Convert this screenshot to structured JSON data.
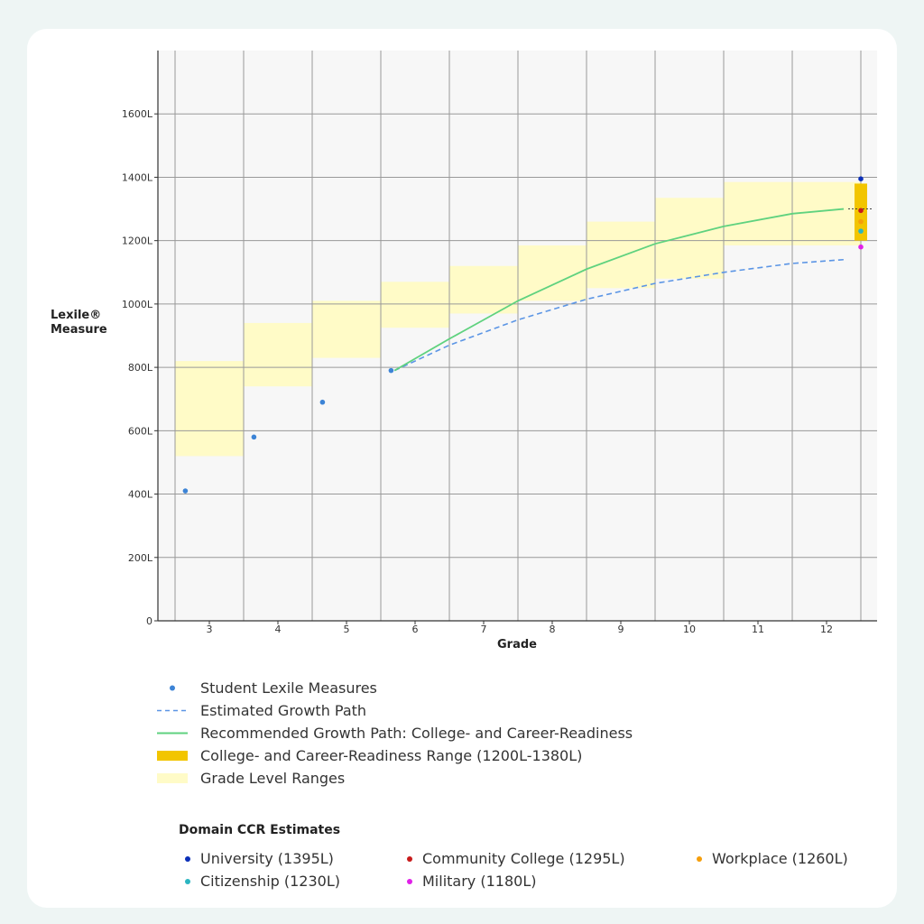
{
  "chart_data": {
    "type": "line",
    "xlabel": "Grade",
    "ylabel": "Lexile® Measure",
    "ylim": [
      0,
      1800
    ],
    "x_categories": [
      "3",
      "4",
      "5",
      "6",
      "7",
      "8",
      "9",
      "10",
      "11",
      "12"
    ],
    "y_ticks": [
      "0",
      "200L",
      "400L",
      "600L",
      "800L",
      "1000L",
      "1200L",
      "1400L",
      "1600L"
    ],
    "grid": true,
    "grade_level_ranges": [
      {
        "grade": "3",
        "low": 520,
        "high": 820
      },
      {
        "grade": "4",
        "low": 740,
        "high": 940
      },
      {
        "grade": "5",
        "low": 830,
        "high": 1010
      },
      {
        "grade": "6",
        "low": 925,
        "high": 1070
      },
      {
        "grade": "7",
        "low": 970,
        "high": 1120
      },
      {
        "grade": "8",
        "low": 1010,
        "high": 1185
      },
      {
        "grade": "9",
        "low": 1050,
        "high": 1260
      },
      {
        "grade": "10",
        "low": 1080,
        "high": 1335
      },
      {
        "grade": "11",
        "low": 1185,
        "high": 1385
      },
      {
        "grade": "12",
        "low": 1185,
        "high": 1385
      }
    ],
    "student_measures": [
      {
        "grade": 2.65,
        "value": 410
      },
      {
        "grade": 3.65,
        "value": 580
      },
      {
        "grade": 4.65,
        "value": 690
      },
      {
        "grade": 5.65,
        "value": 790
      }
    ],
    "estimated_growth_path": [
      {
        "grade": 5.7,
        "value": 790
      },
      {
        "grade": 6.5,
        "value": 870
      },
      {
        "grade": 7.5,
        "value": 950
      },
      {
        "grade": 8.5,
        "value": 1015
      },
      {
        "grade": 9.5,
        "value": 1065
      },
      {
        "grade": 10.5,
        "value": 1100
      },
      {
        "grade": 11.5,
        "value": 1128
      },
      {
        "grade": 12.25,
        "value": 1140
      }
    ],
    "recommended_growth_path": [
      {
        "grade": 5.7,
        "value": 790
      },
      {
        "grade": 6.5,
        "value": 890
      },
      {
        "grade": 7.5,
        "value": 1010
      },
      {
        "grade": 8.5,
        "value": 1110
      },
      {
        "grade": 9.5,
        "value": 1190
      },
      {
        "grade": 10.5,
        "value": 1245
      },
      {
        "grade": 11.5,
        "value": 1285
      },
      {
        "grade": 12.25,
        "value": 1300
      }
    ],
    "ccr_range": {
      "x": 12.5,
      "low": 1200,
      "high": 1380,
      "target": 1300
    },
    "domain_estimates": [
      {
        "name": "University",
        "value": 1395,
        "color": "#0b2fb8"
      },
      {
        "name": "Community College",
        "value": 1295,
        "color": "#c81b1b"
      },
      {
        "name": "Workplace",
        "value": 1260,
        "color": "#f59e0b"
      },
      {
        "name": "Citizenship",
        "value": 1230,
        "color": "#2bb5c1"
      },
      {
        "name": "Military",
        "value": 1180,
        "color": "#e020e8"
      }
    ],
    "colors": {
      "student": "#3d84d6",
      "estimated": "#5b95e5",
      "recommended": "#5fd27f",
      "ccr": "#f2c500",
      "grade_range": "#fffbc7"
    }
  },
  "legend": [
    {
      "key": "student",
      "label": "Student Lexile Measures"
    },
    {
      "key": "estimated",
      "label": "Estimated Growth Path"
    },
    {
      "key": "recommended",
      "label": "Recommended Growth Path: College- and Career-Readiness"
    },
    {
      "key": "ccr",
      "label": "College- and Career-Readiness Range (1200L-1380L)"
    },
    {
      "key": "grade_range",
      "label": "Grade Level Ranges"
    }
  ],
  "domain_legend": {
    "title": "Domain CCR Estimates",
    "items": [
      {
        "label": "University (1395L)",
        "color": "#0b2fb8"
      },
      {
        "label": "Community College (1295L)",
        "color": "#c81b1b"
      },
      {
        "label": "Workplace (1260L)",
        "color": "#f59e0b"
      },
      {
        "label": "Citizenship (1230L)",
        "color": "#2bb5c1"
      },
      {
        "label": "Military (1180L)",
        "color": "#e020e8"
      }
    ]
  }
}
